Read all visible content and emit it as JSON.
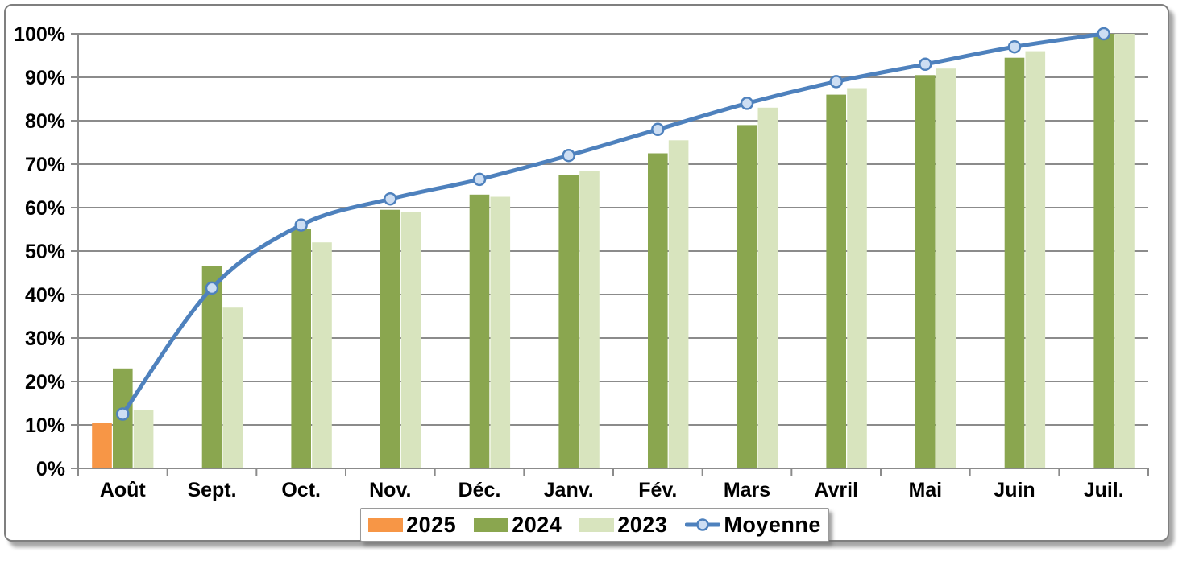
{
  "chart_data": {
    "type": "bar",
    "subtype": "grouped-bars-with-smoothed-line",
    "categories": [
      "Août",
      "Sept.",
      "Oct.",
      "Nov.",
      "Déc.",
      "Janv.",
      "Fév.",
      "Mars",
      "Avril",
      "Mai",
      "Juin",
      "Juil."
    ],
    "series": [
      {
        "name": "2025",
        "type": "bar",
        "color": "#F79646",
        "values": [
          10.5,
          null,
          null,
          null,
          null,
          null,
          null,
          null,
          null,
          null,
          null,
          null
        ]
      },
      {
        "name": "2024",
        "type": "bar",
        "color": "#8AA64F",
        "values": [
          23,
          46.5,
          55,
          59.5,
          63,
          67.5,
          72.5,
          79,
          86,
          90.5,
          94.5,
          100
        ]
      },
      {
        "name": "2023",
        "type": "bar",
        "color": "#D8E4BE",
        "values": [
          13.5,
          37,
          52,
          59,
          62.5,
          68.5,
          75.5,
          83,
          87.5,
          92,
          96,
          100
        ]
      },
      {
        "name": "Moyenne",
        "type": "line",
        "color": "#4E81BD",
        "marker_fill": "#CDDEF3",
        "values": [
          12.5,
          41.5,
          56,
          62,
          66.5,
          72,
          78,
          84,
          89,
          93,
          97,
          100
        ]
      }
    ],
    "title": "",
    "xlabel": "",
    "ylabel": "",
    "ylim": [
      0,
      100
    ],
    "y_tick_labels": [
      "0%",
      "10%",
      "20%",
      "30%",
      "40%",
      "50%",
      "60%",
      "70%",
      "80%",
      "90%",
      "100%"
    ],
    "grid": true,
    "grid_color": "#8b8b8b",
    "axis_color": "#8b8b8b",
    "legend_position": "bottom"
  }
}
